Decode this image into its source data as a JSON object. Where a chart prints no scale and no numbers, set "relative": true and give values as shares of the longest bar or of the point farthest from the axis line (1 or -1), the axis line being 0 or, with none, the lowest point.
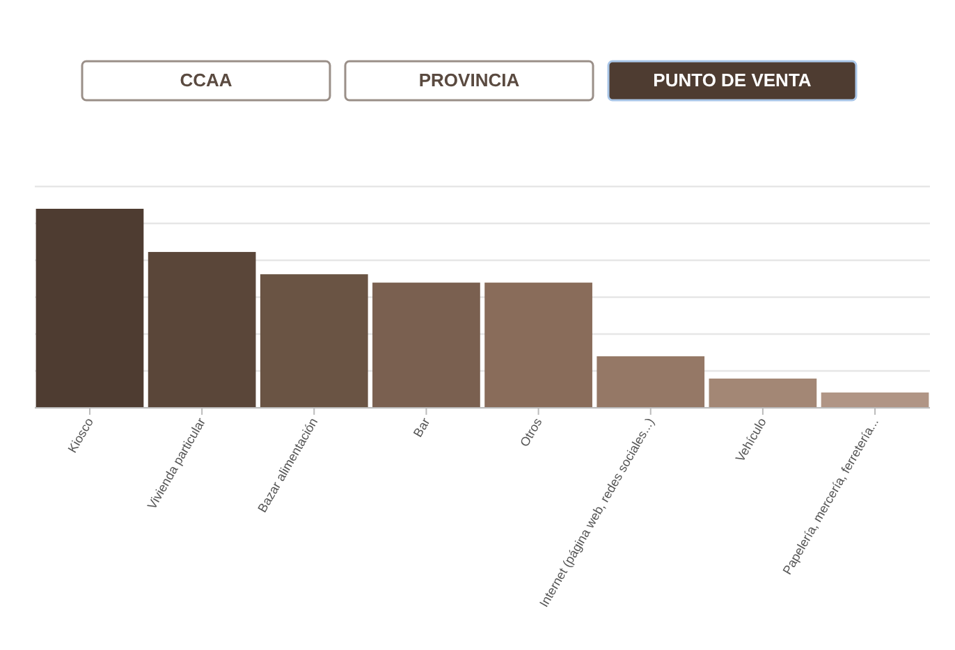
{
  "chart_data": {
    "type": "bar",
    "relative": true,
    "grid": true,
    "annotations": [
      "CCAA",
      "PROVINCIA",
      "PUNTO DE VENTA"
    ],
    "categories": [
      "Kiosco",
      "Vivienda particular",
      "Bazar alimentación",
      "Bar",
      "Otros",
      "Internet (página web, redes sociales...)",
      "Vehículo",
      "Papelería, mercería, ferretería..."
    ],
    "values": [
      1,
      0.783,
      0.671,
      0.629,
      0.629,
      0.259,
      0.147,
      0.077
    ],
    "colors": [
      "#4e3c31",
      "#5a4639",
      "#6a5444",
      "#7a6050",
      "#896c5a",
      "#957866",
      "#a38775",
      "#b09585"
    ]
  }
}
